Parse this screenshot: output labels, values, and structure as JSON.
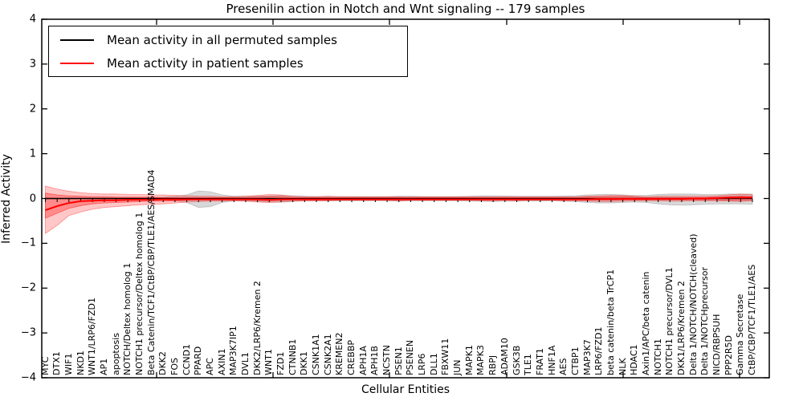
{
  "figure": {
    "title": "Presenilin action in Notch and Wnt signaling -- 179 samples",
    "xlabel": "Cellular Entities",
    "ylabel": "Inferred Activity"
  },
  "legend": {
    "items": [
      {
        "label": "Mean activity in all permuted samples",
        "color": "#000000"
      },
      {
        "label": "Mean activity in patient samples",
        "color": "#ff0000"
      }
    ]
  },
  "chart_data": {
    "type": "line",
    "title": "Presenilin action in Notch and Wnt signaling -- 179 samples",
    "xlabel": "Cellular Entities",
    "ylabel": "Inferred Activity",
    "ylim": [
      -4,
      4
    ],
    "ytick_values": [
      4,
      3,
      2,
      1,
      0,
      -1,
      -2,
      -3,
      -4
    ],
    "ytick_labels": [
      "4",
      "3",
      "2",
      "1",
      "0",
      "−1",
      "−2",
      "−3",
      "−4"
    ],
    "grid": false,
    "legend_position": "upper left",
    "categories": [
      "MYC",
      "DTX1",
      "WIF1",
      "NKD1",
      "WNT1/LRP6/FZD1",
      "AP1",
      "apoptosis",
      "NOTCH/Deltex homolog 1",
      "NOTCH1 precursor/Deltex homolog 1",
      "Beta Catenin/TCF1/CtBP/CBP/TLE1/AES/SMAD4",
      "DKK2",
      "FOS",
      "CCND1",
      "PPARD",
      "APC",
      "AXIN1",
      "MAP3K7IP1",
      "DVL1",
      "DKK2/LRP6/Kremen 2",
      "WNT1",
      "FZD1",
      "CTNNB1",
      "DKK1",
      "CSNK1A1",
      "CSNK2A1",
      "KREMEN2",
      "CREBBP",
      "APH1A",
      "APH1B",
      "NCSTN",
      "PSEN1",
      "PSENEN",
      "LRP6",
      "DLL1",
      "FBXW11",
      "JUN",
      "MAPK1",
      "MAPK3",
      "RBPJ",
      "ADAM10",
      "GSK3B",
      "TLE1",
      "FRAT1",
      "HNF1A",
      "AES",
      "CTBP1",
      "MAP3K7",
      "LRP6/FZD1",
      "beta catenin/beta TrCP1",
      "NLK",
      "HDAC1",
      "Axin1/APC/beta catenin",
      "NOTCH1",
      "NOTCH1 precursor/DVL1",
      "DKK1/LRP6/Kremen 2",
      "Delta 1/NOTCH/NOTCH(cleaved)",
      "Delta 1/NOTCHprecursor",
      "NICD/RBPSUH",
      "PPP2R5D",
      "Gamma Secretase",
      "CtBP/CBP/TCF1/TLE1/AES"
    ],
    "series": [
      {
        "name": "Mean activity in all permuted samples",
        "color": "#000000",
        "linewidth": 1.3,
        "markers": "tick-down",
        "values": [
          0,
          0,
          0,
          0,
          0,
          0,
          0,
          0,
          0,
          0,
          0,
          0,
          0,
          0,
          0,
          0,
          0,
          0,
          0,
          0,
          0,
          0,
          0,
          0,
          0,
          0,
          0,
          0,
          0,
          0,
          0,
          0,
          0,
          0,
          0,
          0,
          0,
          0,
          0,
          0,
          0,
          0,
          0,
          0,
          0,
          0,
          0,
          0,
          0,
          0,
          0,
          0,
          0,
          0,
          0,
          0,
          0,
          0,
          0,
          0,
          0
        ]
      },
      {
        "name": "Mean activity in patient samples",
        "color": "#ff0000",
        "linewidth": 2,
        "markers": "none",
        "values": [
          -0.26,
          -0.17,
          -0.1,
          -0.06,
          -0.05,
          -0.04,
          -0.04,
          -0.03,
          -0.03,
          -0.03,
          -0.02,
          -0.02,
          -0.02,
          -0.02,
          -0.02,
          -0.02,
          -0.02,
          -0.02,
          -0.02,
          -0.03,
          -0.02,
          -0.02,
          -0.02,
          -0.02,
          -0.02,
          -0.02,
          -0.02,
          -0.02,
          -0.02,
          -0.02,
          -0.02,
          -0.02,
          -0.02,
          -0.02,
          -0.02,
          -0.02,
          -0.02,
          -0.02,
          -0.02,
          -0.02,
          -0.02,
          -0.02,
          -0.02,
          -0.02,
          -0.02,
          -0.02,
          -0.02,
          -0.01,
          -0.01,
          -0.01,
          -0.01,
          -0.01,
          -0.01,
          -0.01,
          -0.01,
          0.0,
          0.0,
          0.01,
          0.02,
          0.02,
          0.02
        ]
      }
    ],
    "bands": [
      {
        "name": "permuted-samples-range",
        "color": "#999999",
        "opacity": 0.38,
        "upper": [
          0.02,
          0.02,
          0.02,
          0.02,
          0.02,
          0.02,
          0.02,
          0.02,
          0.02,
          0.02,
          0.03,
          0.05,
          0.08,
          0.17,
          0.15,
          0.08,
          0.05,
          0.05,
          0.05,
          0.06,
          0.07,
          0.06,
          0.05,
          0.045,
          0.045,
          0.045,
          0.045,
          0.045,
          0.045,
          0.045,
          0.05,
          0.05,
          0.045,
          0.045,
          0.045,
          0.045,
          0.05,
          0.06,
          0.06,
          0.055,
          0.05,
          0.05,
          0.05,
          0.05,
          0.055,
          0.06,
          0.08,
          0.09,
          0.09,
          0.08,
          0.07,
          0.07,
          0.09,
          0.1,
          0.1,
          0.1,
          0.09,
          0.09,
          0.1,
          0.1,
          0.1
        ],
        "lower": [
          -0.02,
          -0.02,
          -0.02,
          -0.02,
          -0.02,
          -0.02,
          -0.02,
          -0.02,
          -0.02,
          -0.02,
          -0.03,
          -0.05,
          -0.09,
          -0.2,
          -0.18,
          -0.09,
          -0.05,
          -0.06,
          -0.06,
          -0.08,
          -0.08,
          -0.07,
          -0.05,
          -0.05,
          -0.05,
          -0.05,
          -0.05,
          -0.05,
          -0.05,
          -0.05,
          -0.06,
          -0.05,
          -0.05,
          -0.05,
          -0.05,
          -0.05,
          -0.06,
          -0.06,
          -0.07,
          -0.06,
          -0.06,
          -0.05,
          -0.06,
          -0.05,
          -0.06,
          -0.07,
          -0.09,
          -0.1,
          -0.1,
          -0.09,
          -0.08,
          -0.09,
          -0.12,
          -0.14,
          -0.15,
          -0.14,
          -0.13,
          -0.12,
          -0.12,
          -0.12,
          -0.13
        ]
      },
      {
        "name": "patient-samples-outer-range",
        "color": "#ff0000",
        "opacity": 0.22,
        "upper": [
          0.28,
          0.21,
          0.16,
          0.13,
          0.11,
          0.1,
          0.1,
          0.09,
          0.09,
          0.08,
          0.08,
          0.07,
          0.06,
          0.05,
          0.05,
          0.04,
          0.04,
          0.05,
          0.07,
          0.09,
          0.08,
          0.05,
          0.04,
          0.04,
          0.05,
          0.04,
          0.04,
          0.035,
          0.035,
          0.035,
          0.04,
          0.035,
          0.035,
          0.035,
          0.035,
          0.035,
          0.04,
          0.04,
          0.04,
          0.04,
          0.04,
          0.035,
          0.035,
          0.035,
          0.04,
          0.04,
          0.05,
          0.06,
          0.07,
          0.07,
          0.05,
          0.04,
          0.05,
          0.05,
          0.05,
          0.05,
          0.05,
          0.06,
          0.08,
          0.1,
          0.08
        ],
        "lower": [
          -0.78,
          -0.6,
          -0.38,
          -0.3,
          -0.24,
          -0.2,
          -0.18,
          -0.16,
          -0.14,
          -0.13,
          -0.12,
          -0.1,
          -0.08,
          -0.07,
          -0.06,
          -0.06,
          -0.05,
          -0.06,
          -0.08,
          -0.09,
          -0.08,
          -0.06,
          -0.05,
          -0.05,
          -0.05,
          -0.04,
          -0.04,
          -0.04,
          -0.04,
          -0.04,
          -0.05,
          -0.04,
          -0.04,
          -0.04,
          -0.04,
          -0.04,
          -0.04,
          -0.05,
          -0.05,
          -0.04,
          -0.05,
          -0.04,
          -0.04,
          -0.04,
          -0.05,
          -0.05,
          -0.06,
          -0.07,
          -0.07,
          -0.06,
          -0.05,
          -0.05,
          -0.05,
          -0.06,
          -0.06,
          -0.05,
          -0.05,
          -0.05,
          -0.06,
          -0.07,
          -0.05
        ]
      },
      {
        "name": "patient-samples-inner-range",
        "color": "#ff0000",
        "opacity": 0.3,
        "upper": [
          0.12,
          0.08,
          0.06,
          0.05,
          0.04,
          0.04,
          0.03,
          0.03,
          0.03,
          0.03,
          0.02,
          0.02,
          0.02,
          0.02,
          0.02,
          0.02,
          0.02,
          0.02,
          0.03,
          0.04,
          0.04,
          0.02,
          0.02,
          0.02,
          0.02,
          0.02,
          0.02,
          0.02,
          0.02,
          0.02,
          0.02,
          0.02,
          0.02,
          0.02,
          0.02,
          0.02,
          0.02,
          0.02,
          0.02,
          0.02,
          0.02,
          0.02,
          0.02,
          0.02,
          0.02,
          0.02,
          0.03,
          0.03,
          0.04,
          0.04,
          0.03,
          0.02,
          0.02,
          0.02,
          0.02,
          0.02,
          0.02,
          0.03,
          0.04,
          0.05,
          0.04
        ],
        "lower": [
          -0.44,
          -0.33,
          -0.22,
          -0.16,
          -0.12,
          -0.1,
          -0.09,
          -0.08,
          -0.07,
          -0.06,
          -0.06,
          -0.05,
          -0.04,
          -0.03,
          -0.03,
          -0.03,
          -0.03,
          -0.03,
          -0.04,
          -0.05,
          -0.04,
          -0.03,
          -0.03,
          -0.03,
          -0.03,
          -0.03,
          -0.03,
          -0.03,
          -0.03,
          -0.03,
          -0.03,
          -0.03,
          -0.03,
          -0.03,
          -0.03,
          -0.03,
          -0.03,
          -0.03,
          -0.03,
          -0.03,
          -0.03,
          -0.03,
          -0.03,
          -0.03,
          -0.03,
          -0.03,
          -0.03,
          -0.04,
          -0.04,
          -0.03,
          -0.03,
          -0.03,
          -0.03,
          -0.03,
          -0.03,
          -0.03,
          -0.03,
          -0.03,
          -0.04,
          -0.04,
          -0.03
        ]
      }
    ]
  }
}
